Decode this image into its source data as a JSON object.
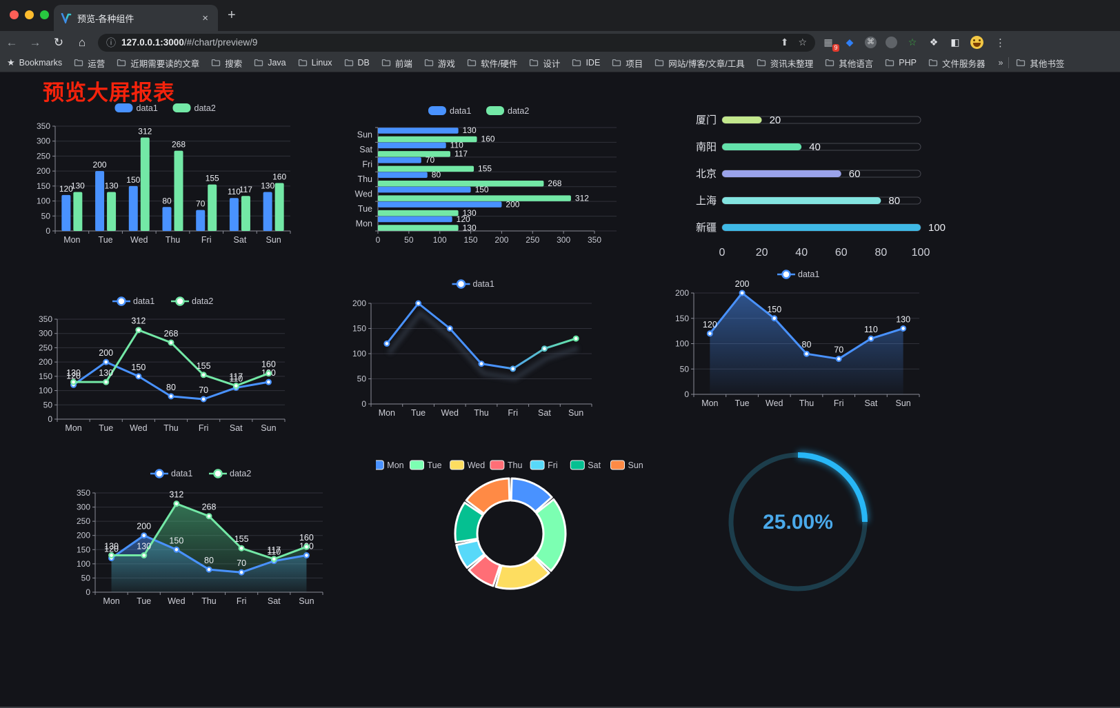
{
  "browser": {
    "traffic_lights": [
      "#ff5f57",
      "#febc2e",
      "#28c840"
    ],
    "tab": {
      "title": "预览-各种组件",
      "close_label": "×",
      "new_tab_label": "+"
    },
    "nav": {
      "back": "←",
      "forward": "→",
      "reload": "↻",
      "home": "⌂"
    },
    "omnibox": {
      "info_icon": "ⓘ",
      "url_host": "127.0.0.1:3000",
      "url_path": "/#/chart/preview/9",
      "share_icon": "⬆",
      "star_icon": "☆"
    },
    "extensions": {
      "grid_icon": "▦",
      "grid_badge": "9",
      "gem_icon": "◆",
      "gem_color": "#2f7ff6",
      "command_icon": "⌘",
      "star_icon": "☆",
      "star_color": "#3bb143",
      "puzzle_icon": "❖",
      "reader_icon": "◧",
      "menu_icon": "⋮"
    },
    "bookmarks_label": "Bookmarks",
    "bookmarks": [
      "运营",
      "近期需要读的文章",
      "搜索",
      "Java",
      "Linux",
      "DB",
      "前端",
      "游戏",
      "软件/硬件",
      "设计",
      "IDE",
      "项目",
      "网站/博客/文章/工具",
      "资讯未整理",
      "其他语言",
      "PHP",
      "文件服务器"
    ],
    "overflow_chevron": "»",
    "other_bookmarks": "其他书签"
  },
  "page": {
    "title": "预览大屏报表",
    "title_color": "#f5230c",
    "background": "#131419"
  },
  "palette": {
    "data1_blue": "#4992ff",
    "data2_green": "#73e8a6"
  },
  "chart_data": [
    {
      "type": "bar",
      "legend": [
        "data1",
        "data2"
      ],
      "legend_position": "top",
      "categories": [
        "Mon",
        "Tue",
        "Wed",
        "Thu",
        "Fri",
        "Sat",
        "Sun"
      ],
      "series": [
        {
          "name": "data1",
          "color": "#4992ff",
          "values": [
            120,
            200,
            150,
            80,
            70,
            110,
            130
          ]
        },
        {
          "name": "data2",
          "color": "#73e8a6",
          "values": [
            130,
            130,
            312,
            268,
            155,
            117,
            160
          ]
        }
      ],
      "ylim": [
        0,
        350
      ],
      "ystep": 50,
      "grid": true,
      "value_labels": true
    },
    {
      "type": "hbar",
      "legend": [
        "data1",
        "data2"
      ],
      "legend_position": "top",
      "categories": [
        "Mon",
        "Tue",
        "Wed",
        "Thu",
        "Fri",
        "Sat",
        "Sun"
      ],
      "series": [
        {
          "name": "data1",
          "color": "#4992ff",
          "values": [
            120,
            200,
            150,
            80,
            70,
            110,
            130
          ]
        },
        {
          "name": "data2",
          "color": "#73e8a6",
          "values": [
            130,
            130,
            312,
            268,
            155,
            117,
            160
          ]
        }
      ],
      "xlim": [
        0,
        350
      ],
      "xstep": 50,
      "grid": true,
      "value_labels": true
    },
    {
      "type": "progress",
      "max": 100,
      "xticks": [
        0,
        20,
        40,
        60,
        80,
        100
      ],
      "rows": [
        {
          "label": "厦门",
          "value": 20,
          "color": "#c3e88d"
        },
        {
          "label": "南阳",
          "value": 40,
          "color": "#63e2ab"
        },
        {
          "label": "北京",
          "value": 60,
          "color": "#9aa3ea"
        },
        {
          "label": "上海",
          "value": 80,
          "color": "#83e4e0"
        },
        {
          "label": "新疆",
          "value": 100,
          "color": "#3fb9e6"
        }
      ]
    },
    {
      "type": "line",
      "legend": [
        "data1",
        "data2"
      ],
      "legend_position": "top",
      "categories": [
        "Mon",
        "Tue",
        "Wed",
        "Thu",
        "Fri",
        "Sat",
        "Sun"
      ],
      "series": [
        {
          "name": "data1",
          "color": "#4992ff",
          "values": [
            120,
            200,
            150,
            80,
            70,
            110,
            130
          ]
        },
        {
          "name": "data2",
          "color": "#73e8a6",
          "values": [
            130,
            130,
            312,
            268,
            155,
            117,
            160
          ]
        }
      ],
      "ylim": [
        0,
        350
      ],
      "ystep": 50,
      "value_labels": true
    },
    {
      "type": "line",
      "legend": [
        "data1"
      ],
      "legend_position": "top",
      "categories": [
        "Mon",
        "Tue",
        "Wed",
        "Thu",
        "Fri",
        "Sat",
        "Sun"
      ],
      "series": [
        {
          "name": "data1",
          "gradient": [
            "#4992ff",
            "#66e7a5"
          ],
          "values": [
            120,
            200,
            150,
            80,
            70,
            110,
            130
          ],
          "shadow": true
        }
      ],
      "ylim": [
        0,
        200
      ],
      "ystep": 50,
      "value_labels": false
    },
    {
      "type": "line",
      "legend": [
        "data1"
      ],
      "legend_position": "top",
      "categories": [
        "Mon",
        "Tue",
        "Wed",
        "Thu",
        "Fri",
        "Sat",
        "Sun"
      ],
      "series": [
        {
          "name": "data1",
          "color": "#4992ff",
          "values": [
            120,
            200,
            150,
            80,
            70,
            110,
            130
          ],
          "area": [
            "rgba(73,146,255,0.50)",
            "rgba(73,146,255,0.03)"
          ]
        }
      ],
      "ylim": [
        0,
        200
      ],
      "ystep": 50,
      "value_labels": true
    },
    {
      "type": "line",
      "legend": [
        "data1",
        "data2"
      ],
      "legend_position": "top",
      "categories": [
        "Mon",
        "Tue",
        "Wed",
        "Thu",
        "Fri",
        "Sat",
        "Sun"
      ],
      "series": [
        {
          "name": "data1",
          "color": "#4992ff",
          "values": [
            120,
            200,
            150,
            80,
            70,
            110,
            130
          ],
          "area": [
            "rgba(73,146,255,0.50)",
            "rgba(73,146,255,0.04)"
          ]
        },
        {
          "name": "data2",
          "color": "#73e8a6",
          "values": [
            130,
            130,
            312,
            268,
            155,
            117,
            160
          ],
          "area": [
            "rgba(77,190,130,0.55)",
            "rgba(77,190,130,0.05)"
          ]
        }
      ],
      "ylim": [
        0,
        350
      ],
      "ystep": 50,
      "value_labels": true
    },
    {
      "type": "pie",
      "legend_position": "top",
      "donut": true,
      "items": [
        {
          "label": "Mon",
          "value": 120,
          "color": "#4992ff"
        },
        {
          "label": "Tue",
          "value": 200,
          "color": "#7cffb2"
        },
        {
          "label": "Wed",
          "value": 150,
          "color": "#fddd60"
        },
        {
          "label": "Thu",
          "value": 80,
          "color": "#ff6e76"
        },
        {
          "label": "Fri",
          "value": 70,
          "color": "#58d9f9"
        },
        {
          "label": "Sat",
          "value": 110,
          "color": "#05c091"
        },
        {
          "label": "Sun",
          "value": 130,
          "color": "#ff8a45"
        }
      ]
    },
    {
      "type": "gauge",
      "label": "25.00%",
      "percent": 25,
      "color": "#28b7f7",
      "track_color": "#1c3d4b",
      "text_color": "#4aa9ea"
    }
  ]
}
